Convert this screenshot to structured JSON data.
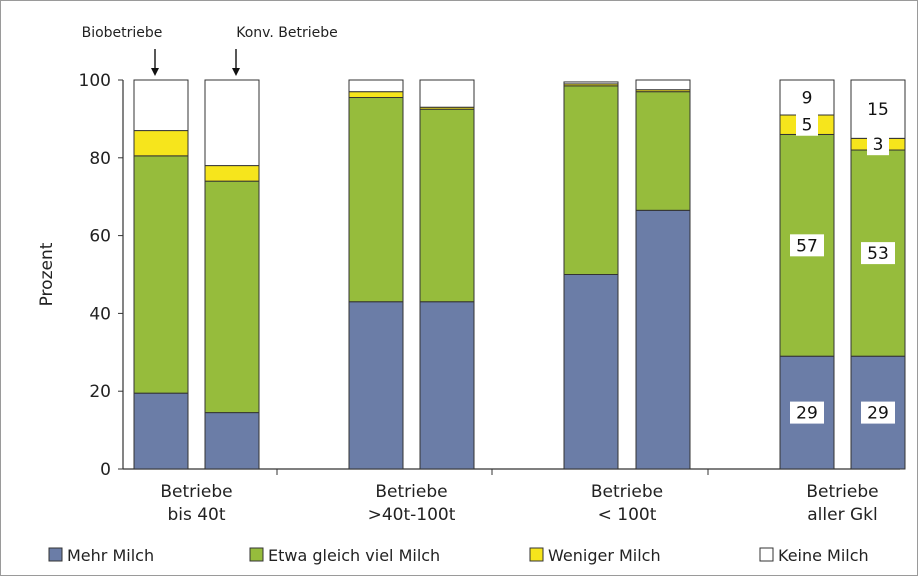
{
  "chart_data": {
    "type": "bar",
    "stacked": true,
    "ylabel": "Prozent",
    "ylim": [
      0,
      100
    ],
    "yticks": [
      0,
      20,
      40,
      60,
      80,
      100
    ],
    "groups": [
      {
        "label_line1": "Betriebe",
        "label_line2": "bis 40t"
      },
      {
        "label_line1": "Betriebe",
        "label_line2": ">40t-100t"
      },
      {
        "label_line1": "Betriebe",
        "label_line2": "< 100t"
      },
      {
        "label_line1": "Betriebe",
        "label_line2": "aller Gkl"
      }
    ],
    "bar_annotations": [
      "Biobetriebe",
      "Konv. Betriebe"
    ],
    "series": [
      {
        "name": "Mehr Milch",
        "color": "#6b7da7",
        "values": [
          19.5,
          14.5,
          43,
          43,
          50,
          66.5,
          29,
          29
        ]
      },
      {
        "name": "Etwa gleich viel Milch",
        "color": "#96bc3c",
        "values": [
          61,
          59.5,
          52.5,
          49.5,
          48.5,
          30.5,
          57,
          53
        ]
      },
      {
        "name": "Weniger Milch",
        "color": "#f6e51c",
        "values": [
          6.5,
          4,
          1.5,
          0.5,
          0.5,
          0.5,
          5,
          3
        ]
      },
      {
        "name": "Keine Milch",
        "color": "#ffffff",
        "values": [
          13,
          22,
          3,
          7,
          0.5,
          2.5,
          9,
          15
        ]
      }
    ],
    "data_labels": [
      {
        "bar": 6,
        "series": 0,
        "text": "29"
      },
      {
        "bar": 6,
        "series": 1,
        "text": "57"
      },
      {
        "bar": 6,
        "series": 2,
        "text": "5"
      },
      {
        "bar": 6,
        "series": 3,
        "text": "9"
      },
      {
        "bar": 7,
        "series": 0,
        "text": "29"
      },
      {
        "bar": 7,
        "series": 1,
        "text": "53"
      },
      {
        "bar": 7,
        "series": 2,
        "text": "3"
      },
      {
        "bar": 7,
        "series": 3,
        "text": "15"
      }
    ],
    "grid": false,
    "legend_position": "bottom"
  }
}
